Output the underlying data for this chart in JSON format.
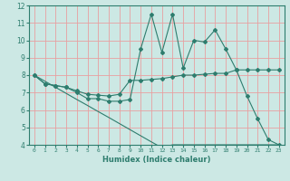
{
  "title": "",
  "xlabel": "Humidex (Indice chaleur)",
  "xlim": [
    -0.5,
    23.5
  ],
  "ylim": [
    4,
    12
  ],
  "yticks": [
    4,
    5,
    6,
    7,
    8,
    9,
    10,
    11,
    12
  ],
  "xticks": [
    0,
    1,
    2,
    3,
    4,
    5,
    6,
    7,
    8,
    9,
    10,
    11,
    12,
    13,
    14,
    15,
    16,
    17,
    18,
    19,
    20,
    21,
    22,
    23
  ],
  "background_color": "#cce8e4",
  "grid_color": "#e8a0a0",
  "line_color": "#2e7d6e",
  "line1_x": [
    0,
    1,
    2,
    3,
    4,
    5,
    6,
    7,
    8,
    9,
    10,
    11,
    12,
    13,
    14,
    15,
    16,
    17,
    18,
    19,
    20,
    21,
    22,
    23
  ],
  "line1_y": [
    8.0,
    7.5,
    7.4,
    7.3,
    7.0,
    6.65,
    6.65,
    6.5,
    6.5,
    6.6,
    9.5,
    11.5,
    9.3,
    11.5,
    8.4,
    10.0,
    9.9,
    10.6,
    9.5,
    8.3,
    6.8,
    5.5,
    4.3,
    4.0
  ],
  "line2_x": [
    0,
    1,
    2,
    3,
    4,
    5,
    6,
    7,
    8,
    9,
    10,
    11,
    12,
    13,
    14,
    15,
    16,
    17,
    18,
    19,
    20,
    21,
    22,
    23
  ],
  "line2_y": [
    8.0,
    7.5,
    7.4,
    7.3,
    7.1,
    6.9,
    6.85,
    6.8,
    6.9,
    7.7,
    7.7,
    7.75,
    7.8,
    7.9,
    8.0,
    8.0,
    8.05,
    8.1,
    8.1,
    8.3,
    8.3,
    8.3,
    8.3,
    8.3
  ],
  "line3_x": [
    0,
    1,
    2,
    3,
    4,
    5,
    6,
    7,
    8,
    9,
    10,
    11,
    12,
    13,
    14,
    15,
    16,
    17,
    18,
    19,
    20,
    21,
    22,
    23
  ],
  "line3_y": [
    8.0,
    7.65,
    7.3,
    6.95,
    6.6,
    6.26,
    5.91,
    5.57,
    5.22,
    4.87,
    4.52,
    4.17,
    3.83,
    4.0,
    4.0,
    4.0,
    4.0,
    4.0,
    4.0,
    4.0,
    4.0,
    4.0,
    4.0,
    4.0
  ]
}
